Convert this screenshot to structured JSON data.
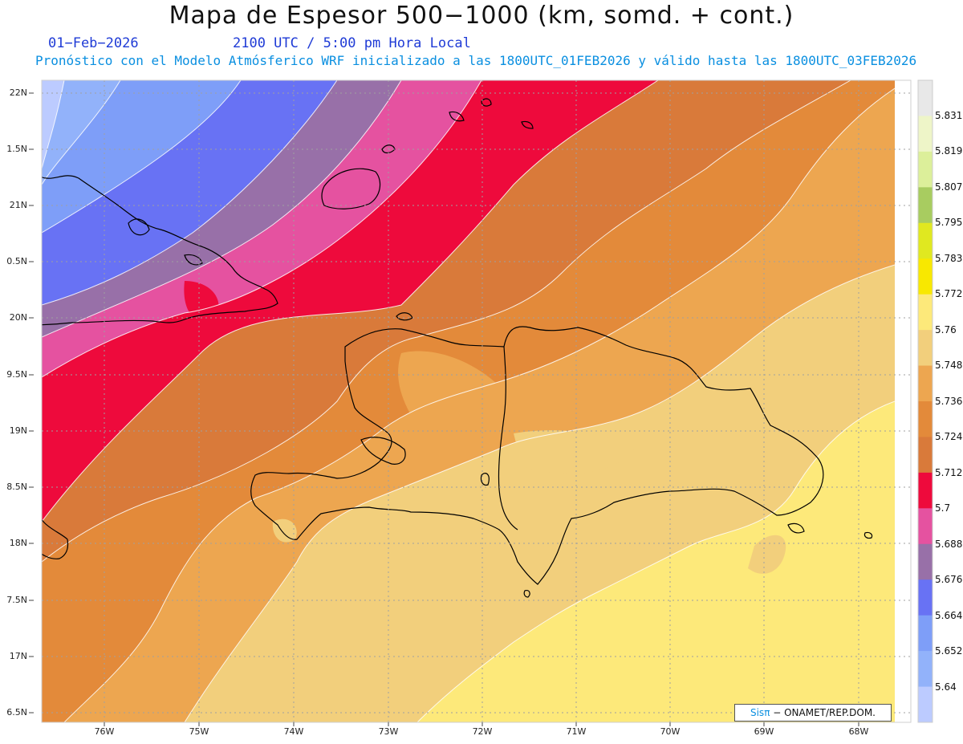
{
  "header": {
    "title": "Mapa de Espesor 500−1000 (km, somd. + cont.)",
    "date": "01−Feb−2026",
    "time": "2100 UTC / 5:00 pm Hora Local",
    "forecast": "Pronóstico con el Modelo Atmósferico WRF inicializado a las 1800UTC_01FEB2026 y válido hasta las  1800UTC_03FEB2026"
  },
  "map": {
    "lat_labels": [
      "22N",
      "1.5N",
      "21N",
      "0.5N",
      "20N",
      "9.5N",
      "19N",
      "8.5N",
      "18N",
      "7.5N",
      "17N",
      "6.5N"
    ],
    "lon_labels": [
      "76W",
      "75W",
      "74W",
      "73W",
      "72W",
      "71W",
      "70W",
      "69W",
      "68W"
    ]
  },
  "colorbar": {
    "labels": [
      "5.831",
      "5.819",
      "5.807",
      "5.795",
      "5.783",
      "5.772",
      "5.76",
      "5.748",
      "5.736",
      "5.724",
      "5.712",
      "5.7",
      "5.688",
      "5.676",
      "5.664",
      "5.652",
      "5.64"
    ],
    "colors": [
      "#e8e8e8",
      "#eef5c8",
      "#dcef9a",
      "#a8cc60",
      "#e0e820",
      "#f8e800",
      "#fde97a",
      "#f2cf7c",
      "#eda650",
      "#e38a3a",
      "#d97a3a",
      "#ee0a3c",
      "#e552a0",
      "#9870a8",
      "#6872f4",
      "#7e9ef8",
      "#92b2fa",
      "#bccbff"
    ],
    "color_names": [
      "light-grey",
      "pale-lime",
      "light-green",
      "green",
      "yellow-green",
      "yellow",
      "light-yellow",
      "sand",
      "light-orange",
      "orange",
      "dark-orange",
      "crimson",
      "pink",
      "purple",
      "blue",
      "light-blue",
      "pale-blue",
      "lavender"
    ]
  },
  "credit": {
    "sis": "Sisπ",
    "org": " − ONAMET/REP.DOM."
  }
}
